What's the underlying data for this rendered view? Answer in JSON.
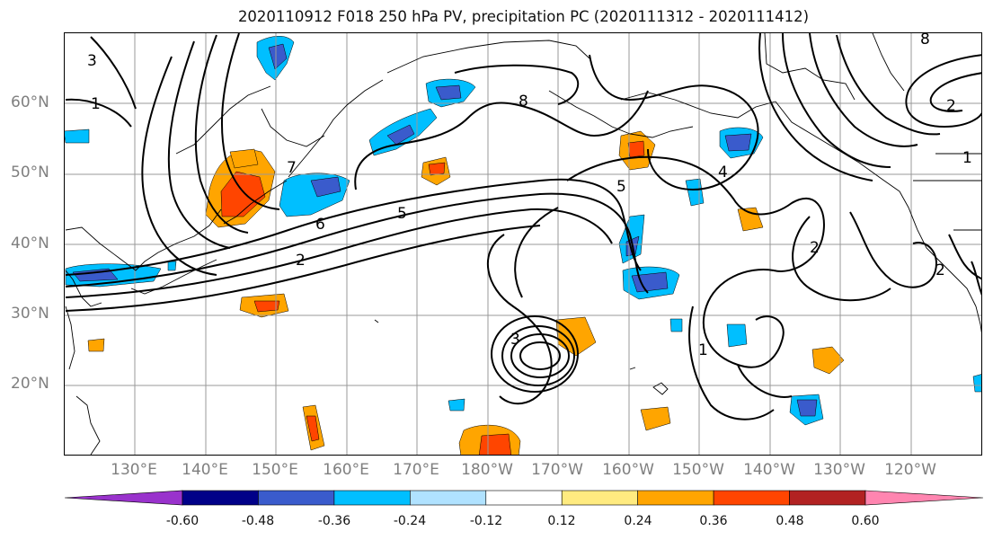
{
  "title": "2020110912 F018 250 hPa PV, precipitation PC (2020111312 - 2020111412)",
  "lat_labels": [
    "60°N",
    "50°N",
    "40°N",
    "30°N",
    "20°N"
  ],
  "lon_labels": [
    "130°E",
    "140°E",
    "150°E",
    "160°E",
    "170°E",
    "180°W",
    "170°W",
    "160°W",
    "150°W",
    "140°W",
    "130°W",
    "120°W"
  ],
  "colorbar": {
    "colors": [
      "#9932cc",
      "#000088",
      "#3a5bcc",
      "#00bfff",
      "#b0e2ff",
      "#ffffff",
      "#ffeb80",
      "#ffa500",
      "#ff4500",
      "#b22222",
      "#ff85b0"
    ],
    "ticks": [
      "-0.60",
      "-0.48",
      "-0.36",
      "-0.24",
      "-0.12",
      "0.12",
      "0.24",
      "0.36",
      "0.48",
      "0.60"
    ]
  },
  "contour_labels": [
    "3",
    "1",
    "8",
    "7",
    "6",
    "2",
    "5",
    "4"
  ],
  "colors": {
    "grid": "#999999",
    "coast": "#000000",
    "contour": "#000000",
    "label": "#7f7f7f"
  }
}
